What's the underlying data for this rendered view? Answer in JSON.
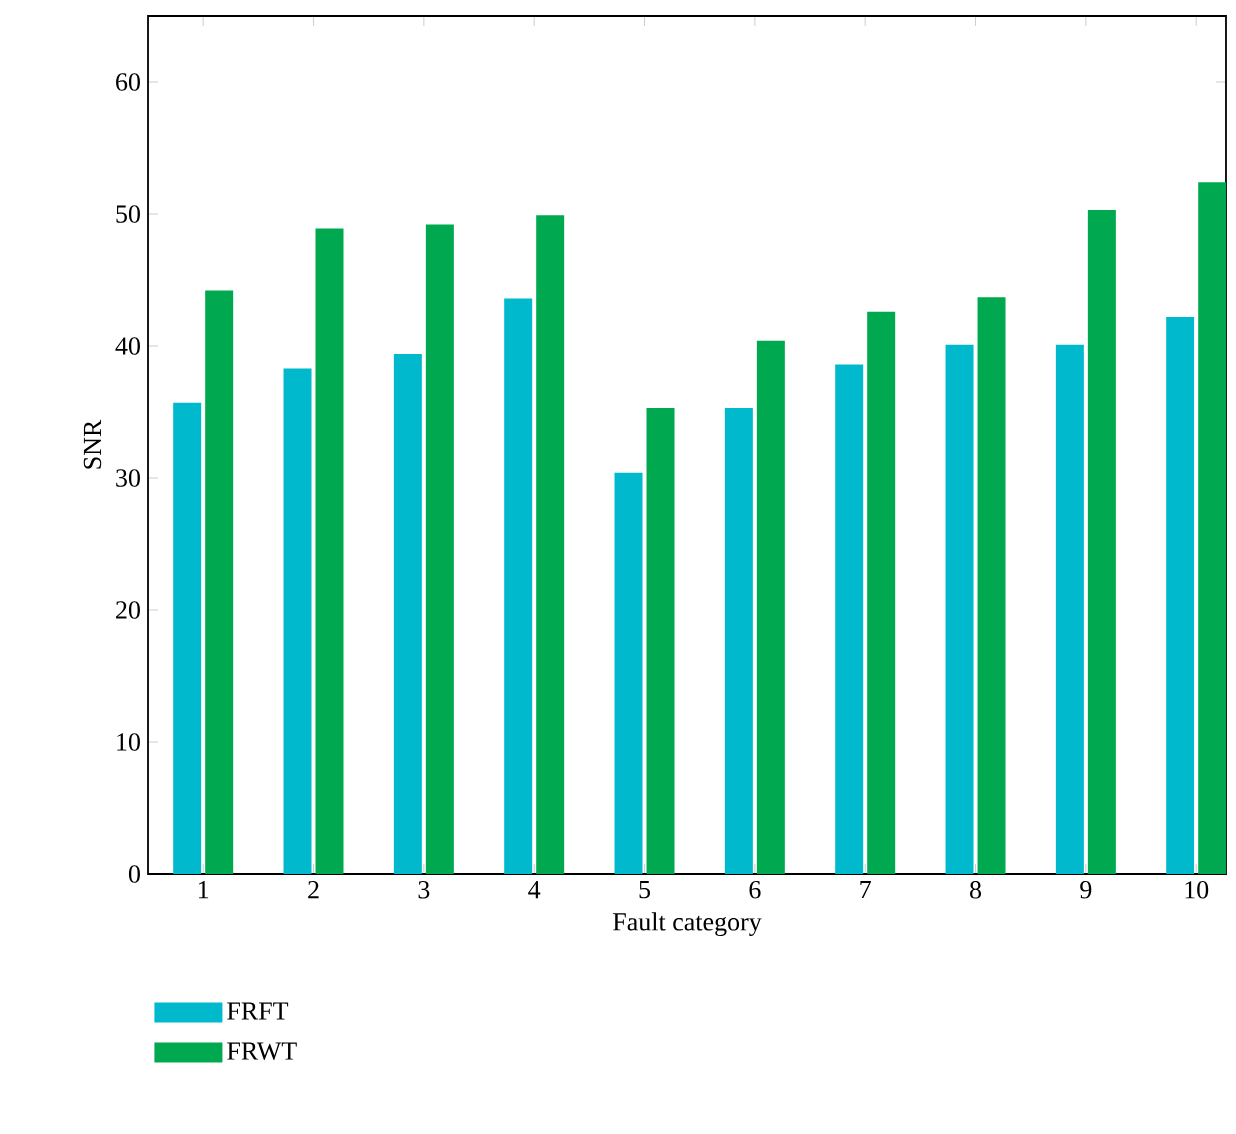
{
  "chart_data": {
    "type": "bar",
    "xlabel": "Fault category",
    "ylabel": "SNR",
    "categories": [
      "1",
      "2",
      "3",
      "4",
      "5",
      "6",
      "7",
      "8",
      "9",
      "10"
    ],
    "series": [
      {
        "name": "FRFT",
        "color": "#00b9cc",
        "values": [
          35.7,
          38.3,
          39.4,
          43.6,
          30.4,
          35.3,
          38.6,
          40.1,
          40.1,
          42.2
        ]
      },
      {
        "name": "FRWT",
        "color": "#00a94f",
        "values": [
          44.2,
          48.9,
          49.2,
          49.9,
          35.3,
          40.4,
          42.6,
          43.7,
          50.3,
          52.4
        ]
      }
    ],
    "ylim": [
      0,
      65
    ],
    "yticks": [
      0,
      10,
      20,
      30,
      40,
      50,
      60
    ],
    "grid": false,
    "legend": "bottom left"
  }
}
